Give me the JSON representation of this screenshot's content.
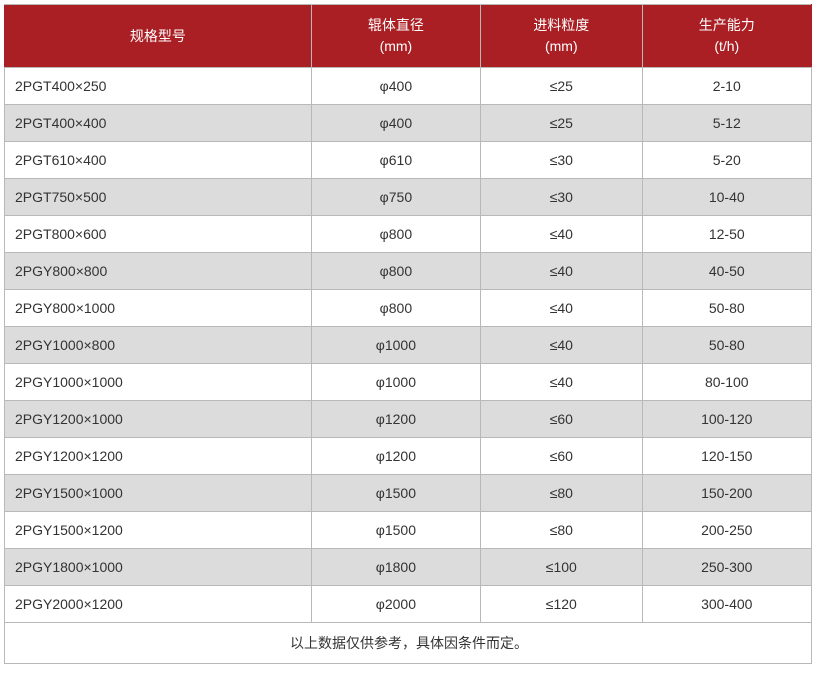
{
  "table": {
    "header_bg": "#a91f24",
    "header_color": "#ffffff",
    "border_color": "#b8b8b8",
    "row_odd_bg": "#ffffff",
    "row_even_bg": "#dcdcdc",
    "text_color": "#333333",
    "font_size": 14,
    "columns": [
      {
        "label_line1": "规格型号",
        "label_line2": "",
        "width": "38%",
        "align_body": "left"
      },
      {
        "label_line1": "辊体直径",
        "label_line2": "(mm)",
        "width": "21%",
        "align_body": "center"
      },
      {
        "label_line1": "进料粒度",
        "label_line2": "(mm)",
        "width": "20%",
        "align_body": "center"
      },
      {
        "label_line1": "生产能力",
        "label_line2": "(t/h)",
        "width": "21%",
        "align_body": "center"
      }
    ],
    "rows": [
      [
        "2PGT400×250",
        "φ400",
        "≤25",
        "2-10"
      ],
      [
        "2PGT400×400",
        "φ400",
        "≤25",
        "5-12"
      ],
      [
        "2PGT610×400",
        "φ610",
        "≤30",
        "5-20"
      ],
      [
        "2PGT750×500",
        "φ750",
        "≤30",
        "10-40"
      ],
      [
        "2PGT800×600",
        "φ800",
        "≤40",
        "12-50"
      ],
      [
        "2PGY800×800",
        "φ800",
        "≤40",
        "40-50"
      ],
      [
        "2PGY800×1000",
        "φ800",
        "≤40",
        "50-80"
      ],
      [
        "2PGY1000×800",
        "φ1000",
        "≤40",
        "50-80"
      ],
      [
        "2PGY1000×1000",
        "φ1000",
        "≤40",
        "80-100"
      ],
      [
        "2PGY1200×1000",
        "φ1200",
        "≤60",
        "100-120"
      ],
      [
        "2PGY1200×1200",
        "φ1200",
        "≤60",
        "120-150"
      ],
      [
        "2PGY1500×1000",
        "φ1500",
        "≤80",
        "150-200"
      ],
      [
        "2PGY1500×1200",
        "φ1500",
        "≤80",
        "200-250"
      ],
      [
        "2PGY1800×1000",
        "φ1800",
        "≤100",
        "250-300"
      ],
      [
        "2PGY2000×1200",
        "φ2000",
        "≤120",
        "300-400"
      ]
    ],
    "footnote": "以上数据仅供参考，具体因条件而定。"
  }
}
